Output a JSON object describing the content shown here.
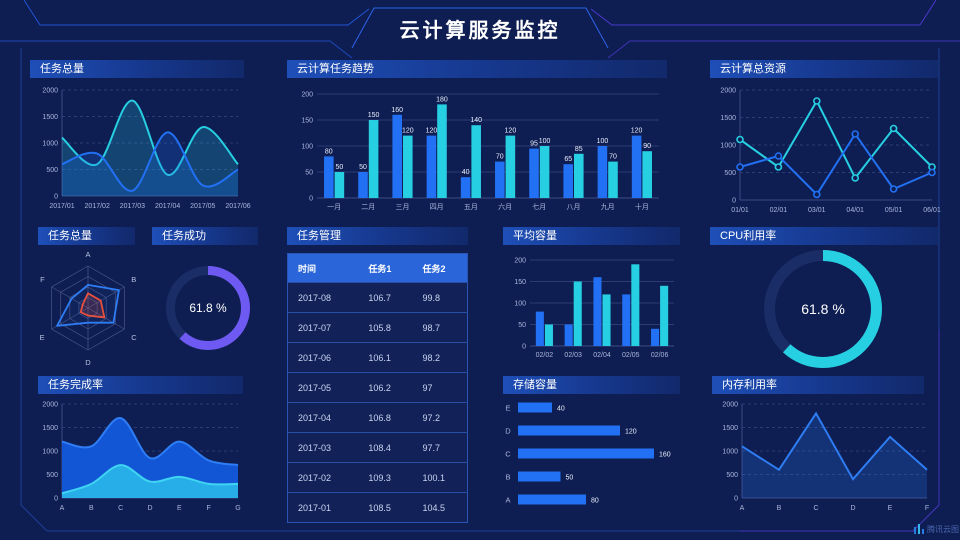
{
  "header": {
    "title": "云计算服务监控"
  },
  "watermark": {
    "label": "腾讯云图"
  },
  "panels": {
    "tasks_total_line": {
      "title": "任务总量"
    },
    "task_trend": {
      "title": "云计算任务趋势"
    },
    "total_resources": {
      "title": "云计算总资源"
    },
    "tasks_radar": {
      "title": "任务总量"
    },
    "task_success": {
      "title": "任务成功"
    },
    "task_mgmt": {
      "title": "任务管理"
    },
    "avg_capacity": {
      "title": "平均容量"
    },
    "cpu_usage": {
      "title": "CPU利用率"
    },
    "completion": {
      "title": "任务完成率"
    },
    "storage": {
      "title": "存储容量"
    },
    "memory": {
      "title": "内存利用率"
    }
  },
  "colors": {
    "blue": "#2270f3",
    "cyan": "#27cfe2",
    "purple": "#6e59f2",
    "red": "#e8503e",
    "area_blue": "#1256d6",
    "area_cyan": "#27aee8",
    "grid": "#2c3c74",
    "axis": "#3c4c86",
    "tick_text": "#a9b6dd",
    "donut_track": "#1b2d66"
  },
  "table": {
    "headers": [
      "时间",
      "任务1",
      "任务2"
    ],
    "rows": [
      [
        "2017-08",
        "106.7",
        "99.8"
      ],
      [
        "2017-07",
        "105.8",
        "98.7"
      ],
      [
        "2017-06",
        "106.1",
        "98.2"
      ],
      [
        "2017-05",
        "106.2",
        "97"
      ],
      [
        "2017-04",
        "106.8",
        "97.2"
      ],
      [
        "2017-03",
        "108.4",
        "97.7"
      ],
      [
        "2017-02",
        "109.3",
        "100.1"
      ],
      [
        "2017-01",
        "108.5",
        "104.5"
      ]
    ]
  },
  "chart_data": [
    {
      "id": "tasks_total_line",
      "type": "line",
      "title": "任务总量",
      "smooth": true,
      "markers": false,
      "grid_dash": true,
      "area_opacity": 0.22,
      "x": [
        "2017/01",
        "2017/02",
        "2017/03",
        "2017/04",
        "2017/05",
        "2017/06"
      ],
      "ylim": [
        0,
        2000
      ],
      "yticks": [
        0,
        500,
        1000,
        1500,
        2000
      ],
      "series": [
        {
          "name": "series-cyan",
          "color": "#27cfe2",
          "area": true,
          "values": [
            1100,
            600,
            1800,
            400,
            1300,
            600
          ]
        },
        {
          "name": "series-blue",
          "color": "#2270f3",
          "area": true,
          "values": [
            600,
            800,
            100,
            1200,
            200,
            500
          ]
        }
      ]
    },
    {
      "id": "task_trend",
      "type": "bar",
      "title": "云计算任务趋势",
      "value_labels": true,
      "categories": [
        "一月",
        "二月",
        "三月",
        "四月",
        "五月",
        "六月",
        "七月",
        "八月",
        "九月",
        "十月"
      ],
      "ylim": [
        0,
        200
      ],
      "yticks": [
        0,
        50,
        100,
        150,
        200
      ],
      "series": [
        {
          "name": "任务1",
          "color": "#2270f3",
          "values": [
            80,
            50,
            160,
            120,
            40,
            70,
            95,
            65,
            100,
            120
          ]
        },
        {
          "name": "任务2",
          "color": "#27cfe2",
          "values": [
            50,
            150,
            120,
            180,
            140,
            120,
            100,
            85,
            70,
            90
          ]
        }
      ]
    },
    {
      "id": "total_resources",
      "type": "line",
      "title": "云计算总资源",
      "smooth": false,
      "markers": true,
      "grid_dash": true,
      "area_opacity": 0,
      "x": [
        "01/01",
        "02/01",
        "03/01",
        "04/01",
        "05/01",
        "06/01"
      ],
      "ylim": [
        0,
        2000
      ],
      "yticks": [
        0,
        500,
        1000,
        1500,
        2000
      ],
      "series": [
        {
          "name": "series-cyan",
          "color": "#27cfe2",
          "area": false,
          "values": [
            1100,
            600,
            1800,
            400,
            1300,
            600
          ]
        },
        {
          "name": "series-blue",
          "color": "#2270f3",
          "area": false,
          "values": [
            600,
            800,
            100,
            1200,
            200,
            500
          ]
        }
      ]
    },
    {
      "id": "tasks_radar",
      "type": "radar",
      "title": "任务总量",
      "axes": [
        "A",
        "B",
        "C",
        "D",
        "E",
        "F"
      ],
      "max": 100,
      "series": [
        {
          "name": "outer",
          "color": "#2e7df5",
          "fill_opacity": 0.06,
          "values": [
            55,
            85,
            70,
            35,
            85,
            45
          ]
        },
        {
          "name": "inner",
          "color": "#e8503e",
          "fill_opacity": 0.18,
          "values": [
            35,
            35,
            45,
            18,
            20,
            15
          ]
        }
      ]
    },
    {
      "id": "task_success",
      "type": "donut",
      "title": "任务成功",
      "value": 61.8,
      "label": "61.8 %",
      "color": "#6e59f2",
      "track": "#1b2d66",
      "stroke": 9,
      "font": 12
    },
    {
      "id": "avg_capacity",
      "type": "bar",
      "title": "平均容量",
      "value_labels": false,
      "categories": [
        "02/02",
        "02/03",
        "02/04",
        "02/05",
        "02/06"
      ],
      "ylim": [
        0,
        200
      ],
      "yticks": [
        0,
        50,
        100,
        150,
        200
      ],
      "series": [
        {
          "name": "series-blue",
          "color": "#2270f3",
          "values": [
            80,
            50,
            160,
            120,
            40
          ]
        },
        {
          "name": "series-cyan",
          "color": "#27cfe2",
          "values": [
            50,
            150,
            120,
            190,
            140
          ]
        }
      ]
    },
    {
      "id": "cpu_usage",
      "type": "donut",
      "title": "CPU利用率",
      "value": 61.8,
      "label": "61.8 %",
      "color": "#27cfe2",
      "track": "#1b2d66",
      "stroke": 11,
      "font": 14
    },
    {
      "id": "completion",
      "type": "line",
      "title": "任务完成率",
      "smooth": true,
      "markers": false,
      "grid_dash": true,
      "area_opacity": 1,
      "x": [
        "A",
        "B",
        "C",
        "D",
        "E",
        "F",
        "G"
      ],
      "ylim": [
        0,
        2000
      ],
      "yticks": [
        0,
        500,
        1000,
        1500,
        2000
      ],
      "series": [
        {
          "name": "blue-area",
          "color": "#2e7df5",
          "area": true,
          "area_color": "#1256d6",
          "values": [
            1200,
            1100,
            1700,
            850,
            1200,
            800,
            700
          ]
        },
        {
          "name": "cyan-area",
          "color": "#3fd4f2",
          "area": true,
          "area_color": "#27aee8",
          "values": [
            100,
            300,
            700,
            350,
            450,
            300,
            300
          ]
        }
      ]
    },
    {
      "id": "storage",
      "type": "hbar",
      "title": "存储容量",
      "categories": [
        "E",
        "D",
        "C",
        "B",
        "A"
      ],
      "values": [
        40,
        120,
        160,
        50,
        80
      ],
      "xmax": 160,
      "color": "#2270f3"
    },
    {
      "id": "memory",
      "type": "line",
      "title": "内存利用率",
      "smooth": false,
      "markers": false,
      "grid_dash": true,
      "area_opacity": 0.22,
      "x": [
        "A",
        "B",
        "C",
        "D",
        "E",
        "F"
      ],
      "ylim": [
        0,
        2000
      ],
      "yticks": [
        0,
        500,
        1000,
        1500,
        2000
      ],
      "series": [
        {
          "name": "series-blue",
          "color": "#2e7df5",
          "area": true,
          "values": [
            1100,
            600,
            1800,
            400,
            1300,
            600
          ]
        }
      ]
    }
  ]
}
